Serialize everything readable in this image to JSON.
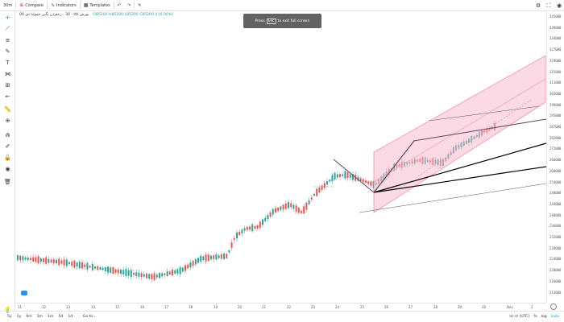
{
  "topbar": {
    "interval": "30m",
    "compare": "Compare",
    "indicators": "Indicators",
    "templates": "Templates"
  },
  "legend": {
    "symbol": "بورس کالا · 30 · زعفران نگین خمولیا دی 00",
    "ohlc": "O85200 H85200 L85200 C85200 0 (0.00%)"
  },
  "fullscreen_notice": {
    "press": "Press",
    "key": "Esc",
    "text": "to exit full screen"
  },
  "price_axis": {
    "ticks": [
      "345000",
      "339000",
      "334000",
      "327000",
      "319000",
      "315000",
      "311000",
      "303000",
      "299000",
      "295000",
      "287000",
      "282000",
      "272000",
      "266000",
      "260000",
      "254000",
      "248000",
      "244000",
      "240000",
      "236000",
      "232000",
      "228000",
      "224000",
      "220000",
      "216000",
      "213000"
    ]
  },
  "time_axis": {
    "ticks": [
      "11",
      "12",
      "13",
      "14",
      "15",
      "16",
      "17",
      "18",
      "19",
      "20",
      "21",
      "22",
      "23",
      "24",
      "25",
      "26",
      "27",
      "28",
      "29",
      "30",
      "Nov",
      "2"
    ]
  },
  "bottombar": {
    "ranges": [
      "5y",
      "1y",
      "6m",
      "3m",
      "1m",
      "5d",
      "1d"
    ],
    "goto": "Go to...",
    "clock": "١٥:١٧ (UTC)",
    "pct": "%",
    "log": "log",
    "auto": "auto"
  },
  "colors": {
    "up": "#26a69a",
    "down": "#ef5350",
    "channel_fill": "#f8bbd0",
    "channel_line": "#f48fb1",
    "trend_line": "#000000",
    "pitchfork": "#6d4c5f"
  },
  "icons": {
    "crosshair": "crosshair-icon",
    "trendline": "trendline-icon",
    "fib": "fib-icon",
    "brush": "brush-icon",
    "text": "text-icon",
    "pattern": "pattern-icon",
    "measure": "measure-icon",
    "arrow": "arrow-left-icon",
    "ruler": "ruler-icon",
    "zoom": "zoom-icon",
    "magnet": "magnet-icon",
    "lock": "lock-icon",
    "eye": "eye-icon",
    "trash": "trash-icon"
  }
}
